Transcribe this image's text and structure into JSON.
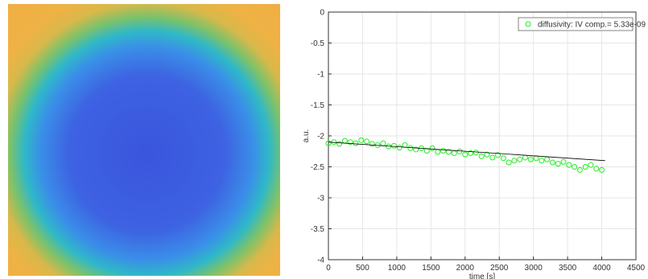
{
  "chart_data": {
    "type": "scatter",
    "x_label": "time [s]",
    "y_label": "a.u.",
    "xlim": [
      0,
      4500
    ],
    "xticks": [
      0,
      500,
      1000,
      1500,
      2000,
      2500,
      3000,
      3500,
      4000,
      4500
    ],
    "ylim": [
      -4,
      0
    ],
    "yticks": [
      0,
      -0.5,
      -1,
      -1.5,
      -2,
      -2.5,
      -3,
      -3.5,
      -4
    ],
    "grid": true,
    "legend": "upper right",
    "x": [
      0,
      80,
      160,
      240,
      320,
      400,
      480,
      560,
      640,
      720,
      800,
      880,
      960,
      1040,
      1120,
      1200,
      1280,
      1360,
      1440,
      1520,
      1600,
      1680,
      1760,
      1840,
      1920,
      2000,
      2080,
      2160,
      2240,
      2320,
      2400,
      2480,
      2560,
      2640,
      2720,
      2800,
      2880,
      2960,
      3040,
      3120,
      3200,
      3280,
      3360,
      3440,
      3520,
      3600,
      3680,
      3760,
      3840,
      3920,
      4000
    ],
    "series": [
      {
        "name": "diffusivity: IV comp.= 5.33e-09",
        "color": "#22ee22",
        "values": [
          -2.12,
          -2.1,
          -2.13,
          -2.08,
          -2.1,
          -2.12,
          -2.07,
          -2.09,
          -2.13,
          -2.15,
          -2.12,
          -2.17,
          -2.16,
          -2.19,
          -2.15,
          -2.2,
          -2.22,
          -2.2,
          -2.24,
          -2.2,
          -2.26,
          -2.24,
          -2.26,
          -2.28,
          -2.25,
          -2.3,
          -2.28,
          -2.27,
          -2.33,
          -2.3,
          -2.35,
          -2.31,
          -2.36,
          -2.43,
          -2.4,
          -2.38,
          -2.35,
          -2.38,
          -2.36,
          -2.4,
          -2.38,
          -2.43,
          -2.45,
          -2.42,
          -2.47,
          -2.5,
          -2.55,
          -2.5,
          -2.47,
          -2.53,
          -2.55
        ]
      }
    ],
    "fit": {
      "x": [
        0,
        4050
      ],
      "values": [
        -2.1,
        -2.4
      ],
      "color": "#000000"
    }
  }
}
